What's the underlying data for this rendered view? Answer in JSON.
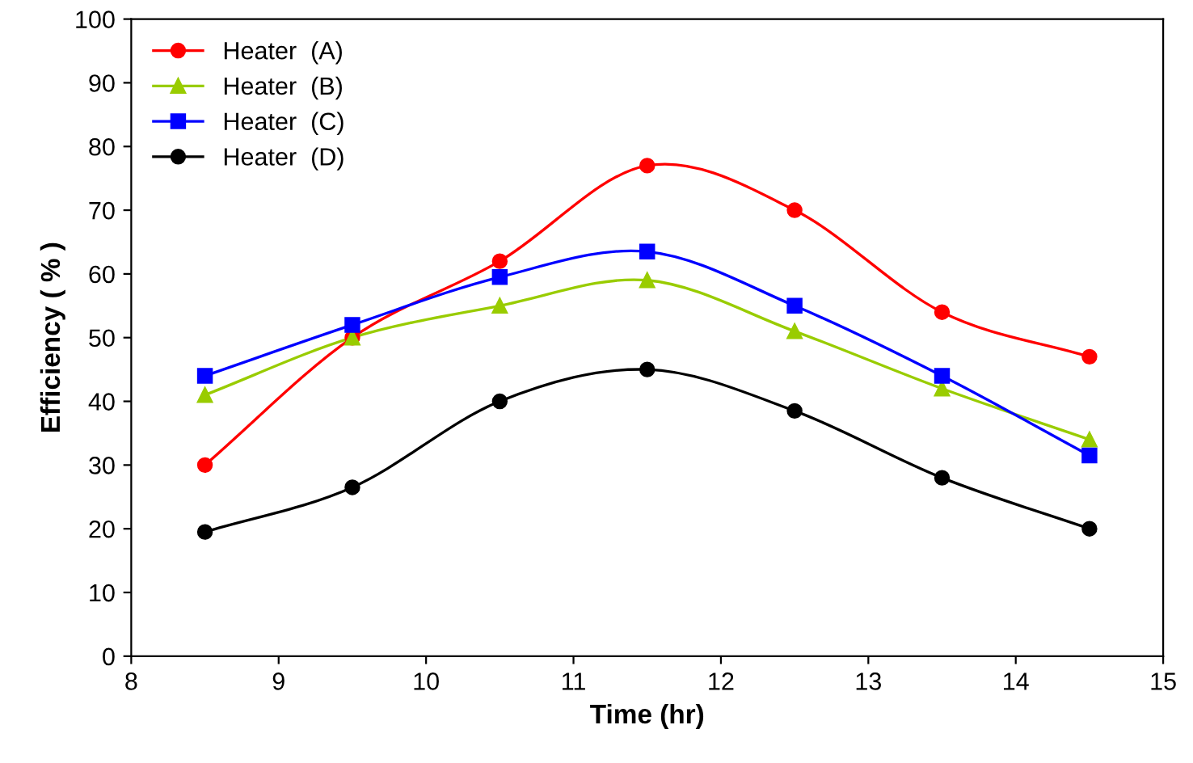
{
  "chart_data": {
    "type": "line",
    "xlabel": "Time (hr)",
    "ylabel": "Efficiency ( % )",
    "x": [
      8.5,
      9.5,
      10.5,
      11.5,
      12.5,
      13.5,
      14.5
    ],
    "series": [
      {
        "name": "Heater  (A)",
        "color": "#ff0000",
        "marker": "circle",
        "values": [
          30,
          50,
          62,
          77,
          70,
          54,
          47
        ]
      },
      {
        "name": "Heater  (B)",
        "color": "#99cc00",
        "marker": "triangle",
        "values": [
          41,
          50,
          55,
          59,
          51,
          42,
          34
        ]
      },
      {
        "name": "Heater  (C)",
        "color": "#0000ff",
        "marker": "square",
        "values": [
          44,
          52,
          59.5,
          63.5,
          55,
          44,
          31.5
        ]
      },
      {
        "name": "Heater  (D)",
        "color": "#000000",
        "marker": "circle",
        "values": [
          19.5,
          26.5,
          40,
          45,
          38.5,
          28,
          20
        ]
      }
    ],
    "xlim": [
      8,
      15
    ],
    "xticks": [
      8,
      9,
      10,
      11,
      12,
      13,
      14,
      15
    ],
    "ylim": [
      0,
      100
    ],
    "yticks": [
      0,
      10,
      20,
      30,
      40,
      50,
      60,
      70,
      80,
      90,
      100
    ],
    "grid": false,
    "legend": "top left",
    "line_style": "solid"
  }
}
